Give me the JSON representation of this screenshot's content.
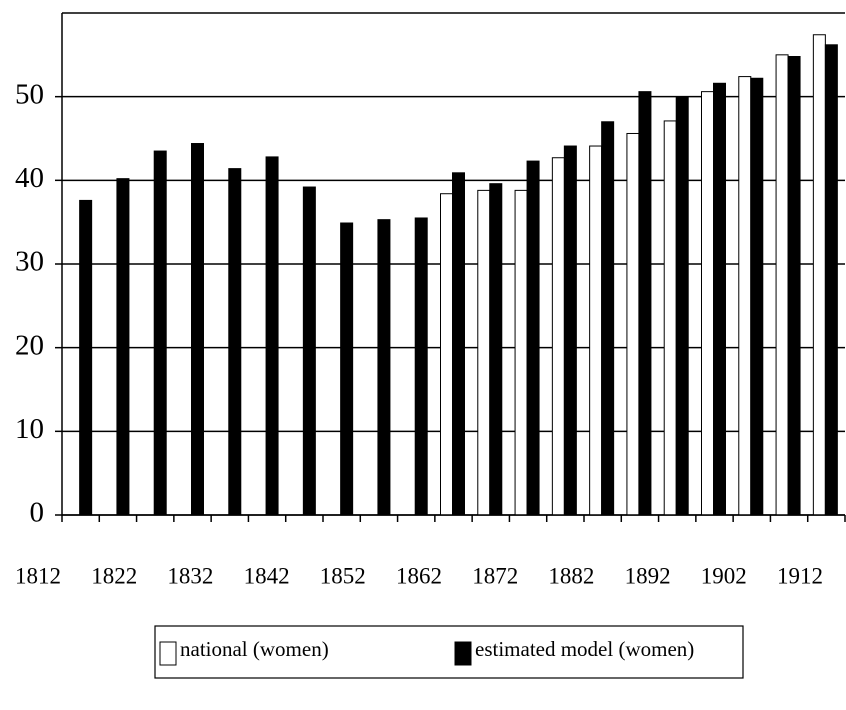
{
  "chart_data": {
    "type": "bar",
    "categories": [
      "1812",
      null,
      "1822",
      null,
      "1832",
      null,
      "1842",
      null,
      "1852",
      null,
      "1862",
      null,
      "1872",
      null,
      "1882",
      null,
      "1892",
      null,
      "1902",
      null,
      "1912"
    ],
    "series": [
      {
        "name": "national (women)",
        "color": "#ffffff",
        "values": [
          null,
          null,
          null,
          null,
          null,
          null,
          null,
          null,
          null,
          null,
          38.4,
          38.8,
          38.8,
          42.7,
          44.1,
          45.6,
          47.1,
          50.6,
          52.4,
          55.0,
          57.4
        ]
      },
      {
        "name": "estimated model (women)",
        "color": "#000000",
        "values": [
          37.6,
          40.2,
          43.5,
          44.4,
          41.4,
          42.8,
          39.2,
          34.9,
          35.3,
          35.5,
          40.9,
          39.6,
          42.3,
          44.1,
          47.0,
          50.6,
          50.0,
          51.6,
          52.2,
          54.8,
          56.2
        ]
      }
    ],
    "ylim": [
      0,
      60
    ],
    "yticks": [
      0,
      10,
      20,
      30,
      40,
      50
    ],
    "grid": true,
    "legend": "bottom"
  }
}
